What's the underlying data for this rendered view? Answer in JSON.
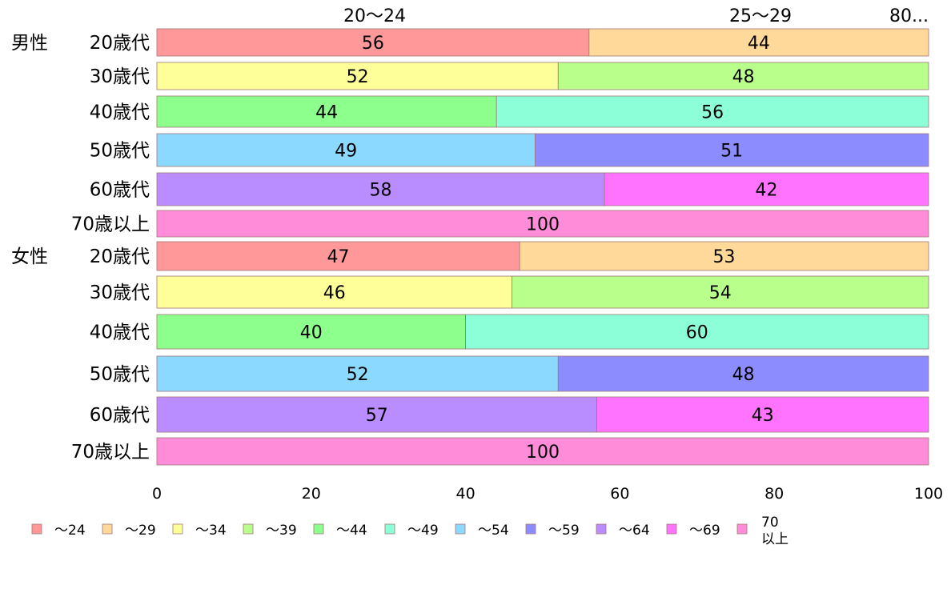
{
  "chart_data": {
    "type": "bar",
    "orientation": "horizontal",
    "stacked": true,
    "categories": [
      {
        "group": "男性",
        "label": "20歳代"
      },
      {
        "group": "",
        "label": "30歳代"
      },
      {
        "group": "",
        "label": "40歳代"
      },
      {
        "group": "",
        "label": "50歳代"
      },
      {
        "group": "",
        "label": "60歳代"
      },
      {
        "group": "",
        "label": "70歳以上"
      },
      {
        "group": "女性",
        "label": "20歳代"
      },
      {
        "group": "",
        "label": "30歳代"
      },
      {
        "group": "",
        "label": "40歳代"
      },
      {
        "group": "",
        "label": "50歳代"
      },
      {
        "group": "",
        "label": "60歳代"
      },
      {
        "group": "",
        "label": "70歳以上"
      }
    ],
    "segments": [
      [
        {
          "series": 0,
          "value": 56
        },
        {
          "series": 1,
          "value": 44
        }
      ],
      [
        {
          "series": 2,
          "value": 52
        },
        {
          "series": 3,
          "value": 48
        }
      ],
      [
        {
          "series": 4,
          "value": 44
        },
        {
          "series": 5,
          "value": 56
        }
      ],
      [
        {
          "series": 6,
          "value": 49
        },
        {
          "series": 7,
          "value": 51
        }
      ],
      [
        {
          "series": 8,
          "value": 58
        },
        {
          "series": 9,
          "value": 42
        }
      ],
      [
        {
          "series": 10,
          "value": 100
        }
      ],
      [
        {
          "series": 0,
          "value": 47
        },
        {
          "series": 1,
          "value": 53
        }
      ],
      [
        {
          "series": 2,
          "value": 46
        },
        {
          "series": 3,
          "value": 54
        }
      ],
      [
        {
          "series": 4,
          "value": 40
        },
        {
          "series": 5,
          "value": 60
        }
      ],
      [
        {
          "series": 6,
          "value": 52
        },
        {
          "series": 7,
          "value": 48
        }
      ],
      [
        {
          "series": 8,
          "value": 57
        },
        {
          "series": 9,
          "value": 43
        }
      ],
      [
        {
          "series": 10,
          "value": 100
        }
      ]
    ],
    "series": [
      {
        "name": "～24",
        "color": "#ff9999"
      },
      {
        "name": "～29",
        "color": "#ffd999"
      },
      {
        "name": "～34",
        "color": "#ffff99"
      },
      {
        "name": "～39",
        "color": "#b9ff8c"
      },
      {
        "name": "～44",
        "color": "#8cff8c"
      },
      {
        "name": "～49",
        "color": "#8cffd9"
      },
      {
        "name": "～54",
        "color": "#8cd9ff"
      },
      {
        "name": "～59",
        "color": "#8c8cff"
      },
      {
        "name": "～64",
        "color": "#b98cff"
      },
      {
        "name": "～69",
        "color": "#ff73ff"
      },
      {
        "name": "70\n以上",
        "color": "#ff8cd9"
      }
    ],
    "top_labels": [
      "20～24",
      "25～29",
      "80..."
    ],
    "xlim": [
      0,
      100
    ],
    "xticks": [
      0,
      20,
      40,
      60,
      80,
      100
    ],
    "grid": false,
    "legend_position": "bottom"
  }
}
